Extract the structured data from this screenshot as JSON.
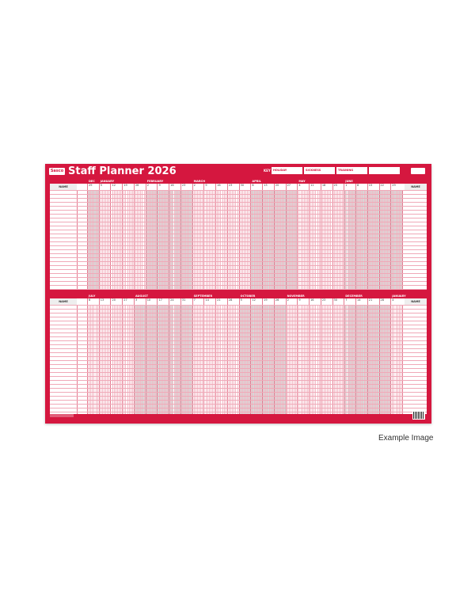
{
  "planner": {
    "logo": "Sasco",
    "title": "Staff Planner 2026",
    "key_label": "KEY",
    "key_items": [
      "HOLIDAY",
      "SICKNESS",
      "TRAINING",
      ""
    ],
    "name_label": "NAME",
    "colors": {
      "primary": "#d5173f",
      "shade": "#d7d7d7"
    },
    "top": {
      "months": [
        {
          "label": "DEC",
          "weeks": [
            29
          ],
          "shaded": true
        },
        {
          "label": "JANUARY",
          "weeks": [
            5,
            12,
            19,
            26
          ],
          "shaded": false
        },
        {
          "label": "FEBRUARY",
          "weeks": [
            2,
            9,
            16,
            23
          ],
          "shaded": true
        },
        {
          "label": "MARCH",
          "weeks": [
            2,
            9,
            16,
            23,
            30
          ],
          "shaded": false
        },
        {
          "label": "APRIL",
          "weeks": [
            6,
            13,
            20,
            27
          ],
          "shaded": true
        },
        {
          "label": "MAY",
          "weeks": [
            4,
            11,
            18,
            25
          ],
          "shaded": false
        },
        {
          "label": "JUNE",
          "weeks": [
            1,
            8,
            15,
            22,
            29
          ],
          "shaded": true
        }
      ]
    },
    "bottom": {
      "months": [
        {
          "label": "JULY",
          "weeks": [
            6,
            13,
            20,
            27
          ],
          "shaded": false
        },
        {
          "label": "AUGUST",
          "weeks": [
            3,
            10,
            17,
            24,
            31
          ],
          "shaded": true
        },
        {
          "label": "SEPTEMBER",
          "weeks": [
            7,
            14,
            21,
            28
          ],
          "shaded": false
        },
        {
          "label": "OCTOBER",
          "weeks": [
            5,
            12,
            19,
            26
          ],
          "shaded": true
        },
        {
          "label": "NOVEMBER",
          "weeks": [
            2,
            9,
            16,
            23,
            30
          ],
          "shaded": false
        },
        {
          "label": "DECEMBER",
          "weeks": [
            7,
            14,
            21,
            28
          ],
          "shaded": true
        },
        {
          "label": "JANUARY",
          "weeks": [
            4
          ],
          "shaded": false
        }
      ]
    }
  },
  "caption": "Example Image"
}
